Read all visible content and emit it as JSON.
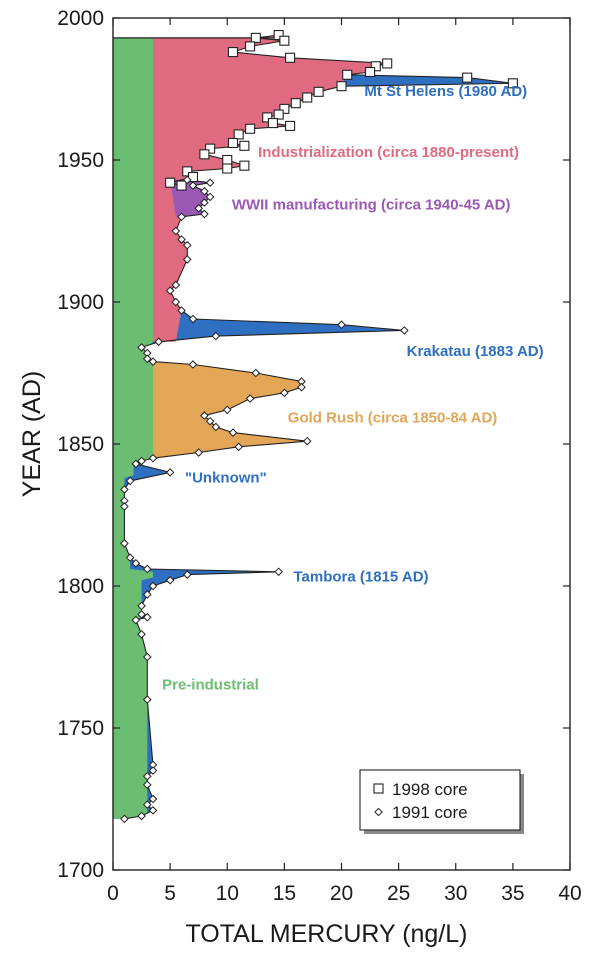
{
  "chart_data": {
    "type": "area",
    "xlabel": "TOTAL MERCURY (ng/L)",
    "ylabel": "YEAR (AD)",
    "xlim": [
      0,
      40
    ],
    "ylim": [
      1700,
      2000
    ],
    "x_ticks": [
      "0",
      "5",
      "10",
      "15",
      "20",
      "25",
      "30",
      "35",
      "40"
    ],
    "y_ticks": [
      "1700",
      "1750",
      "1800",
      "1850",
      "1900",
      "1950",
      "2000"
    ],
    "grid": false,
    "legend_position": "bottom-right",
    "legend": [
      {
        "label": "1998 core",
        "marker": "square"
      },
      {
        "label": "1991 core",
        "marker": "diamond"
      }
    ],
    "colors": {
      "pre_industrial": "#6bbd72",
      "industrialization": "#e06b80",
      "volcanic": "#2f6fc2",
      "wwii": "#9b59b6",
      "gold_rush": "#e3a556"
    },
    "annotations": [
      {
        "text": "Mt St Helens (1980 AD)",
        "color": "#2f6fc2"
      },
      {
        "text": "Industrialization (circa 1880-present)",
        "color": "#e06b80"
      },
      {
        "text": "WWII manufacturing (circa 1940-45 AD)",
        "color": "#9b59b6"
      },
      {
        "text": "Krakatau (1883 AD)",
        "color": "#2f6fc2"
      },
      {
        "text": "Gold Rush (circa 1850-84 AD)",
        "color": "#e3a556"
      },
      {
        "text": "\"Unknown\"",
        "color": "#2f6fc2"
      },
      {
        "text": "Tambora (1815 AD)",
        "color": "#2f6fc2"
      },
      {
        "text": "Pre-industrial",
        "color": "#6bbd72"
      }
    ],
    "series": [
      {
        "name": "1998 core",
        "points": [
          [
            14.5,
            1994
          ],
          [
            12.5,
            1993
          ],
          [
            15.0,
            1992
          ],
          [
            12.0,
            1990
          ],
          [
            10.5,
            1988
          ],
          [
            15.5,
            1986
          ],
          [
            24.0,
            1984
          ],
          [
            23.0,
            1983
          ],
          [
            22.5,
            1981
          ],
          [
            20.5,
            1980
          ],
          [
            31.0,
            1979
          ],
          [
            35.0,
            1977
          ],
          [
            20.0,
            1976
          ],
          [
            18.0,
            1974
          ],
          [
            17.0,
            1972
          ],
          [
            16.0,
            1970
          ],
          [
            15.0,
            1968
          ],
          [
            14.5,
            1966
          ],
          [
            13.5,
            1965
          ],
          [
            14.0,
            1963
          ],
          [
            15.5,
            1962
          ],
          [
            12.0,
            1961
          ],
          [
            11.0,
            1959
          ],
          [
            10.5,
            1956
          ],
          [
            11.5,
            1955
          ],
          [
            8.5,
            1954
          ],
          [
            8.0,
            1952
          ],
          [
            10.0,
            1950
          ],
          [
            11.5,
            1948
          ],
          [
            10.0,
            1947
          ],
          [
            6.5,
            1946
          ],
          [
            7.0,
            1944
          ],
          [
            5.0,
            1942
          ],
          [
            6.0,
            1941
          ]
        ]
      },
      {
        "name": "1991 core",
        "points": [
          [
            6.5,
            1943
          ],
          [
            8.5,
            1942
          ],
          [
            7.0,
            1941
          ],
          [
            8.0,
            1939
          ],
          [
            8.5,
            1937
          ],
          [
            8.0,
            1935
          ],
          [
            7.5,
            1933
          ],
          [
            8.0,
            1931
          ],
          [
            6.0,
            1930
          ],
          [
            5.5,
            1925
          ],
          [
            6.0,
            1922
          ],
          [
            6.5,
            1920
          ],
          [
            6.5,
            1915
          ],
          [
            5.5,
            1906
          ],
          [
            5.0,
            1904
          ],
          [
            5.5,
            1900
          ],
          [
            6.0,
            1897
          ],
          [
            7.0,
            1894
          ],
          [
            20.0,
            1892
          ],
          [
            25.5,
            1890
          ],
          [
            9.0,
            1888
          ],
          [
            4.0,
            1886
          ],
          [
            2.5,
            1884
          ],
          [
            3.0,
            1882
          ],
          [
            3.0,
            1880
          ],
          [
            3.5,
            1879
          ],
          [
            7.0,
            1878
          ],
          [
            12.5,
            1875
          ],
          [
            16.5,
            1872
          ],
          [
            16.5,
            1870
          ],
          [
            15.0,
            1868
          ],
          [
            12.0,
            1866
          ],
          [
            10.0,
            1862
          ],
          [
            8.0,
            1860
          ],
          [
            8.5,
            1858
          ],
          [
            9.0,
            1856
          ],
          [
            10.5,
            1854
          ],
          [
            17.0,
            1851
          ],
          [
            11.0,
            1849
          ],
          [
            7.5,
            1847
          ],
          [
            3.5,
            1845
          ],
          [
            2.5,
            1844
          ],
          [
            2.0,
            1843
          ],
          [
            5.0,
            1840
          ],
          [
            1.5,
            1837
          ],
          [
            1.0,
            1834
          ],
          [
            1.0,
            1830
          ],
          [
            1.0,
            1828
          ],
          [
            1.0,
            1815
          ],
          [
            1.5,
            1810
          ],
          [
            2.0,
            1808
          ],
          [
            3.0,
            1806
          ],
          [
            14.5,
            1805
          ],
          [
            6.5,
            1804
          ],
          [
            5.0,
            1802
          ],
          [
            3.5,
            1800
          ],
          [
            3.0,
            1797
          ],
          [
            2.5,
            1793
          ],
          [
            2.5,
            1790
          ],
          [
            3.0,
            1789
          ],
          [
            2.0,
            1788
          ],
          [
            2.5,
            1783
          ],
          [
            3.0,
            1775
          ],
          [
            3.0,
            1760
          ],
          [
            3.5,
            1737
          ],
          [
            3.5,
            1735
          ],
          [
            3.0,
            1733
          ],
          [
            3.0,
            1730
          ],
          [
            3.5,
            1725
          ],
          [
            3.0,
            1723
          ],
          [
            3.5,
            1721
          ],
          [
            2.5,
            1719
          ],
          [
            1.0,
            1718
          ]
        ]
      }
    ],
    "top_line_year": 1993
  }
}
